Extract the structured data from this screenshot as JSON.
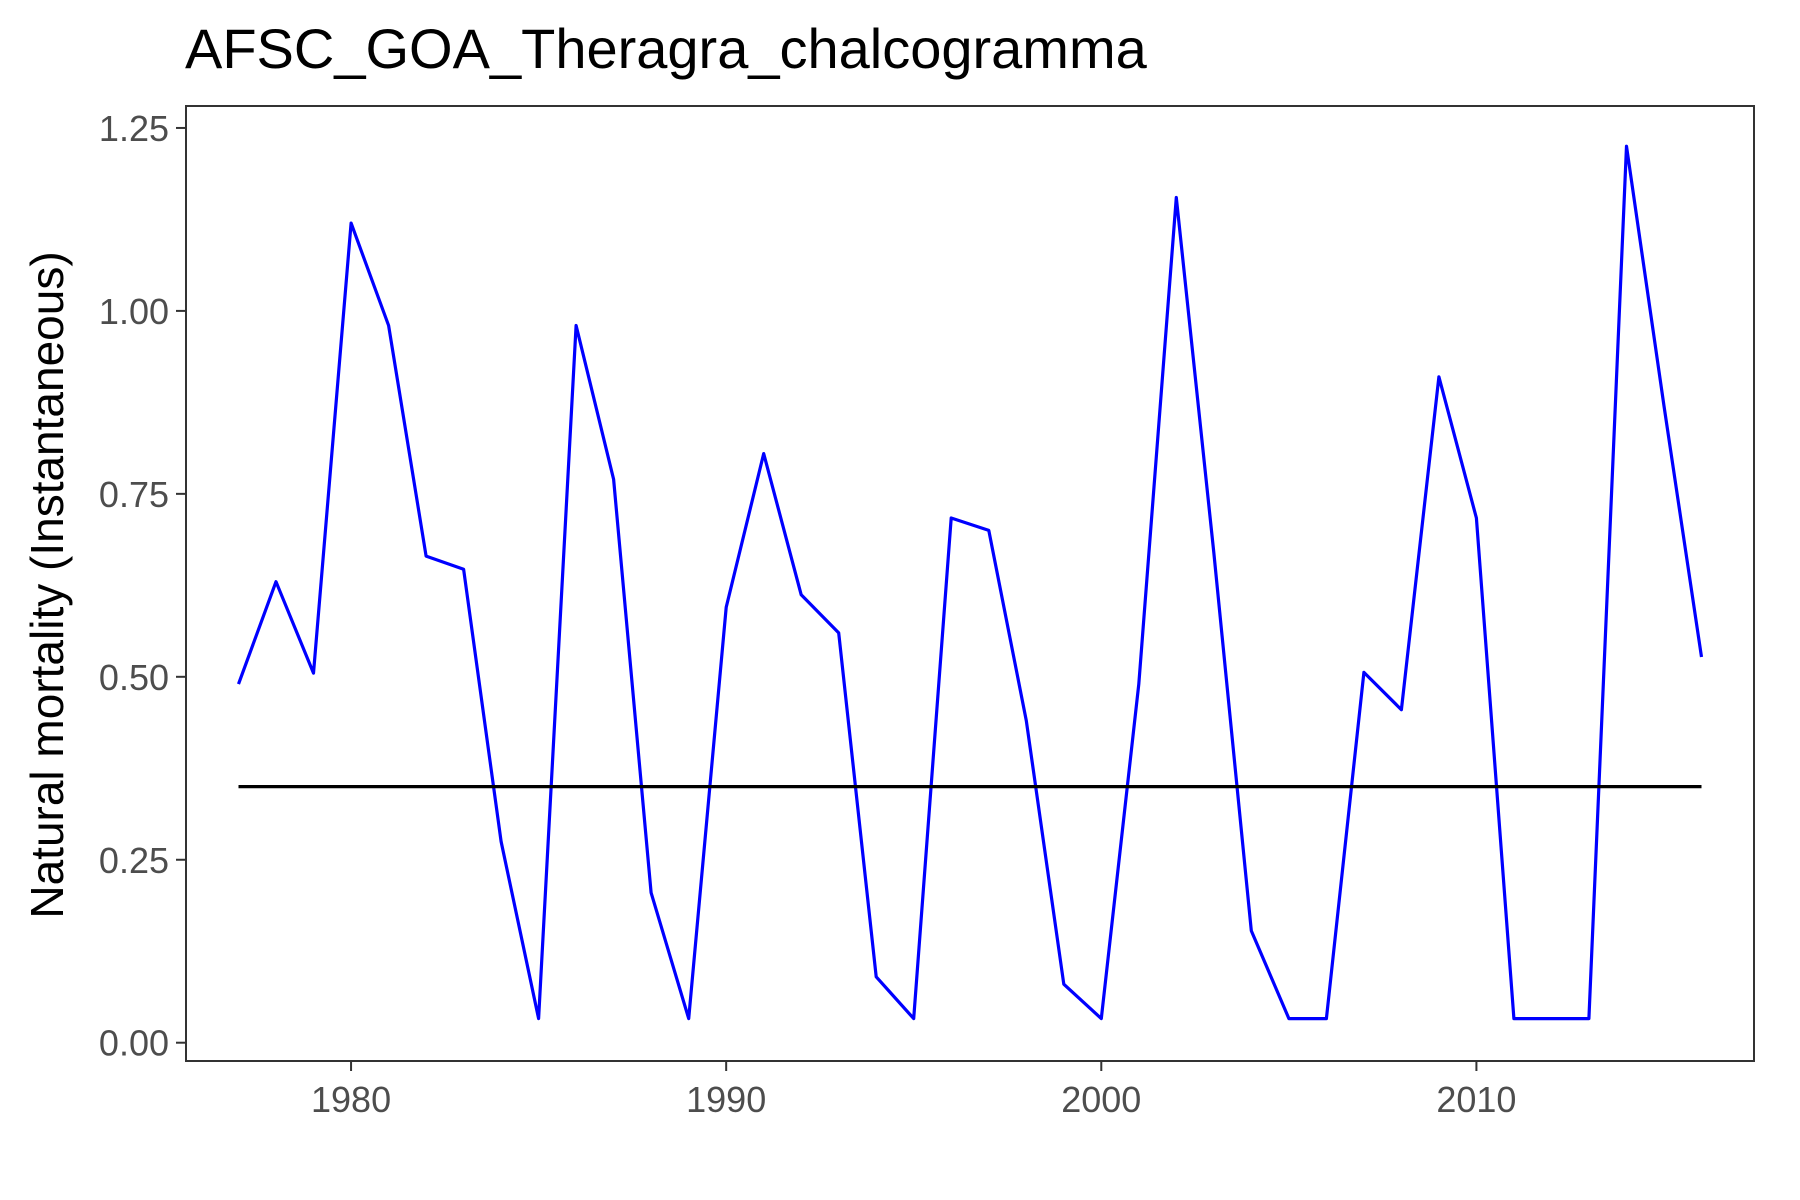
{
  "chart_data": {
    "type": "line",
    "title": "AFSC_GOA_Theragra_chalcogramma",
    "xlabel": "",
    "ylabel": "Natural mortality (Instantaneous)",
    "xlim": [
      1975.6,
      2017.4
    ],
    "ylim": [
      -0.025,
      1.28
    ],
    "x_ticks": [
      1980,
      1990,
      2000,
      2010
    ],
    "x_tick_labels": [
      "1980",
      "1990",
      "2000",
      "2010"
    ],
    "y_ticks": [
      0.0,
      0.25,
      0.5,
      0.75,
      1.0,
      1.25
    ],
    "y_tick_labels": [
      "0.00",
      "0.25",
      "0.50",
      "0.75",
      "1.00",
      "1.25"
    ],
    "grid": false,
    "legend": "none",
    "series": [
      {
        "color": "#0000ff",
        "x": [
          1977,
          1978,
          1979,
          1980,
          1981,
          1982,
          1983,
          1984,
          1985,
          1986,
          1987,
          1988,
          1989,
          1990,
          1991,
          1992,
          1993,
          1994,
          1995,
          1996,
          1997,
          1998,
          1999,
          2000,
          2001,
          2002,
          2003,
          2004,
          2005,
          2006,
          2007,
          2008,
          2009,
          2010,
          2011,
          2012,
          2013,
          2014,
          2015,
          2016
        ],
        "y": [
          0.49,
          0.63,
          0.505,
          1.12,
          0.98,
          0.665,
          0.647,
          0.275,
          0.033,
          0.98,
          0.77,
          0.205,
          0.033,
          0.595,
          0.805,
          0.612,
          0.56,
          0.09,
          0.033,
          0.717,
          0.7,
          0.44,
          0.08,
          0.033,
          0.49,
          1.155,
          0.67,
          0.153,
          0.033,
          0.033,
          0.506,
          0.455,
          0.91,
          0.717,
          0.033,
          0.033,
          0.033,
          1.225,
          0.87,
          0.527
        ]
      },
      {
        "color": "#000000",
        "x": [
          1977,
          2016
        ],
        "y": [
          0.35,
          0.35
        ]
      }
    ]
  }
}
